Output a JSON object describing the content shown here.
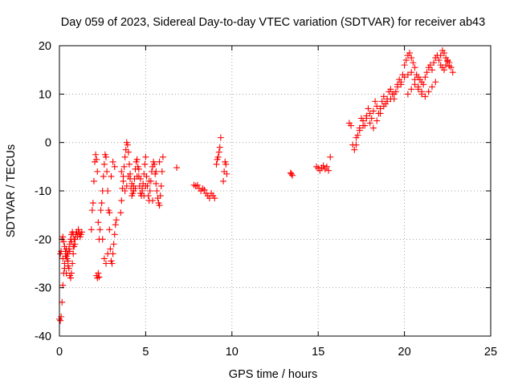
{
  "chart_data": {
    "type": "scatter",
    "title": "Day 059 of 2023, Sidereal Day-to-day VTEC variation (SDTVAR) for receiver ab43",
    "xlabel": "GPS time / hours",
    "ylabel": "SDTVAR / TECUs",
    "xlim": [
      0,
      25
    ],
    "ylim": [
      -40,
      20
    ],
    "xticks": [
      "0",
      "5",
      "10",
      "15",
      "20",
      "25"
    ],
    "yticks": [
      "-40",
      "-30",
      "-20",
      "-10",
      "0",
      "10",
      "20"
    ],
    "grid": true,
    "marker": "plus",
    "color": "#ff0000",
    "series": [
      {
        "x": [
          0.0,
          0.05,
          0.1,
          0.15,
          0.2,
          0.25,
          0.3,
          0.35,
          0.4,
          0.45,
          0.5,
          0.55,
          0.6,
          0.65,
          0.7,
          0.75,
          0.8,
          0.85,
          0.9,
          0.95,
          1.0,
          1.05,
          1.1,
          1.15,
          1.2,
          1.25,
          1.3,
          0.05,
          0.1,
          0.15,
          0.2,
          0.25,
          0.3,
          0.35,
          0.4,
          0.45,
          0.5,
          0.55,
          0.6,
          0.65,
          0.7,
          0.75,
          0.8,
          0.85,
          0.9,
          0.2,
          0.3,
          0.4,
          0.5,
          0.6,
          0.7,
          0.8,
          1.85,
          1.9,
          1.95,
          2.0,
          2.05,
          2.1,
          2.15,
          2.2,
          2.25,
          2.3,
          2.35,
          2.4,
          2.15,
          2.2,
          2.25,
          2.3,
          2.45,
          2.5,
          2.55,
          2.6,
          2.65,
          2.7,
          2.75,
          2.8,
          2.85,
          2.9,
          2.95,
          3.0,
          3.05,
          3.1,
          3.15,
          3.2,
          3.25,
          3.3,
          2.5,
          2.6,
          2.7,
          2.8,
          2.9,
          3.0,
          3.1,
          3.2,
          3.55,
          3.6,
          3.65,
          3.7,
          3.75,
          3.8,
          3.85,
          3.9,
          3.95,
          4.0,
          4.05,
          4.1,
          4.15,
          4.2,
          4.25,
          4.3,
          4.35,
          4.4,
          4.45,
          4.5,
          4.55,
          4.6,
          4.65,
          4.7,
          4.75,
          4.8,
          4.85,
          4.9,
          4.95,
          5.0,
          3.6,
          3.7,
          3.8,
          3.9,
          4.0,
          4.1,
          4.2,
          4.3,
          4.4,
          4.5,
          4.6,
          4.7,
          4.8,
          4.9,
          5.0,
          5.05,
          5.1,
          5.15,
          5.2,
          5.25,
          5.3,
          5.35,
          5.4,
          5.45,
          5.5,
          5.55,
          5.6,
          5.65,
          5.7,
          5.75,
          5.8,
          5.85,
          5.9,
          5.95,
          6.0,
          5.2,
          5.4,
          5.6,
          5.8,
          6.8,
          7.8,
          7.9,
          8.0,
          8.1,
          8.2,
          8.3,
          8.4,
          8.5,
          8.6,
          8.7,
          8.8,
          8.9,
          9.0,
          9.1,
          9.15,
          9.2,
          9.25,
          9.3,
          9.35,
          9.5,
          9.55,
          9.6,
          9.65,
          9.7,
          13.4,
          13.45,
          13.5,
          14.9,
          15.0,
          15.1,
          15.2,
          15.3,
          15.4,
          15.5,
          15.6,
          15.7,
          16.8,
          16.9,
          17.0,
          17.1,
          17.2,
          17.3,
          17.4,
          17.5,
          17.6,
          17.7,
          17.8,
          17.9,
          18.0,
          18.1,
          18.2,
          18.3,
          18.4,
          18.5,
          18.6,
          18.7,
          18.8,
          18.9,
          19.0,
          19.1,
          19.2,
          19.3,
          19.4,
          19.5,
          19.6,
          19.7,
          19.8,
          19.9,
          20.0,
          20.1,
          20.2,
          20.3,
          20.4,
          20.5,
          20.6,
          20.7,
          20.8,
          20.9,
          21.0,
          21.1,
          21.2,
          21.3,
          21.4,
          21.5,
          17.2,
          17.4,
          17.6,
          17.8,
          18.0,
          18.2,
          18.4,
          18.6,
          18.8,
          19.0,
          19.2,
          19.4,
          19.6,
          19.8,
          20.0,
          20.2,
          20.4,
          20.6,
          20.8,
          21.0,
          20.2,
          20.4,
          20.6,
          20.8,
          21.0,
          21.2,
          21.4,
          21.6,
          21.8,
          21.6,
          21.7,
          21.8,
          21.9,
          22.0,
          22.1,
          22.2,
          22.3,
          22.4,
          22.5,
          22.6,
          22.7,
          22.8,
          22.1,
          22.2,
          22.3,
          22.4,
          22.5,
          22.6
        ],
        "y": [
          -36.5,
          -36.8,
          -36.0,
          -33.0,
          -29.5,
          -27.0,
          -25.0,
          -23.5,
          -22.0,
          -23.0,
          -24.5,
          -26.0,
          -27.5,
          -28.0,
          -27.0,
          -25.0,
          -23.0,
          -21.5,
          -20.0,
          -19.0,
          -18.5,
          -19.5,
          -18.0,
          -18.8,
          -19.5,
          -19.0,
          -18.5,
          -23.0,
          -22.5,
          -20.0,
          -19.5,
          -20.5,
          -21.5,
          -22.5,
          -23.5,
          -24.0,
          -23.0,
          -22.0,
          -21.0,
          -20.0,
          -19.0,
          -18.5,
          -19.0,
          -20.0,
          -21.0,
          -24.0,
          -26.0,
          -27.0,
          -25.5,
          -22.5,
          -20.5,
          -21.5,
          -18.0,
          -14.0,
          -12.5,
          -8.0,
          -4.0,
          -2.5,
          -3.5,
          -6.0,
          -16.5,
          -20.0,
          -18.0,
          -14.0,
          -27.5,
          -28.0,
          -27.0,
          -27.8,
          -12.5,
          -10.0,
          -7.0,
          -4.5,
          -2.5,
          -3.0,
          -6.0,
          -10.0,
          -14.0,
          -18.0,
          -22.0,
          -24.5,
          -25.0,
          -23.0,
          -21.0,
          -19.0,
          -17.0,
          -16.0,
          -20.0,
          -24.0,
          -25.0,
          -23.0,
          -14.5,
          -7.0,
          -4.0,
          -5.0,
          -14.5,
          -12.0,
          -9.5,
          -7.0,
          -5.0,
          -3.0,
          -1.5,
          0.0,
          -0.5,
          -2.0,
          -4.5,
          -7.5,
          -9.5,
          -11.0,
          -10.5,
          -9.0,
          -7.5,
          -5.5,
          -4.0,
          -3.5,
          -5.0,
          -7.0,
          -9.0,
          -10.5,
          -11.0,
          -10.0,
          -8.5,
          -6.5,
          -4.5,
          -3.0,
          -6.0,
          -8.0,
          -10.0,
          -9.0,
          -7.0,
          -6.5,
          -8.5,
          -10.0,
          -9.5,
          -7.0,
          -5.5,
          -7.5,
          -9.5,
          -11.0,
          -9.0,
          -7.0,
          -9.0,
          -11.0,
          -12.0,
          -10.0,
          -8.0,
          -6.0,
          -5.0,
          -4.0,
          -4.5,
          -6.5,
          -8.5,
          -10.0,
          -11.5,
          -12.5,
          -13.0,
          -11.0,
          -9.0,
          -6.0,
          -3.0,
          -8.0,
          -12.0,
          -6.0,
          -4.0,
          -5.2,
          -8.8,
          -9.0,
          -8.8,
          -9.5,
          -10.0,
          -9.5,
          -9.8,
          -10.5,
          -11.0,
          -11.5,
          -10.5,
          -11.0,
          -11.5,
          -4.5,
          -3.5,
          -3.0,
          -2.0,
          -1.0,
          1.0,
          -8.0,
          -6.0,
          -4.0,
          -4.5,
          -6.5,
          -6.3,
          -6.5,
          -6.8,
          -5.0,
          -5.3,
          -5.8,
          -5.2,
          -4.8,
          -5.5,
          -5.0,
          -5.8,
          -3.0,
          4.0,
          3.5,
          -0.5,
          -1.5,
          -0.5,
          1.5,
          3.0,
          5.0,
          4.5,
          3.5,
          5.5,
          7.0,
          6.0,
          5.0,
          6.5,
          8.5,
          7.5,
          6.0,
          7.0,
          8.5,
          9.5,
          8.0,
          9.0,
          10.5,
          11.0,
          10.0,
          9.0,
          10.5,
          12.0,
          13.0,
          12.0,
          14.0,
          16.0,
          17.0,
          18.0,
          18.5,
          17.5,
          16.5,
          15.5,
          14.0,
          13.5,
          13.0,
          12.5,
          12.0,
          13.5,
          14.5,
          15.5,
          16.0,
          1.0,
          2.5,
          3.5,
          5.0,
          4.0,
          3.0,
          4.5,
          6.0,
          7.5,
          8.5,
          9.0,
          10.0,
          11.5,
          12.5,
          13.5,
          14.0,
          14.5,
          13.0,
          11.0,
          10.5,
          10.0,
          11.0,
          12.0,
          11.5,
          10.0,
          9.5,
          10.5,
          11.5,
          12.5,
          15.0,
          16.5,
          17.5,
          18.0,
          17.0,
          16.0,
          15.5,
          15.0,
          16.0,
          17.0,
          16.5,
          15.5,
          14.5,
          18.0,
          19.0,
          18.5,
          17.5,
          16.8,
          15.8
        ]
      }
    ]
  }
}
